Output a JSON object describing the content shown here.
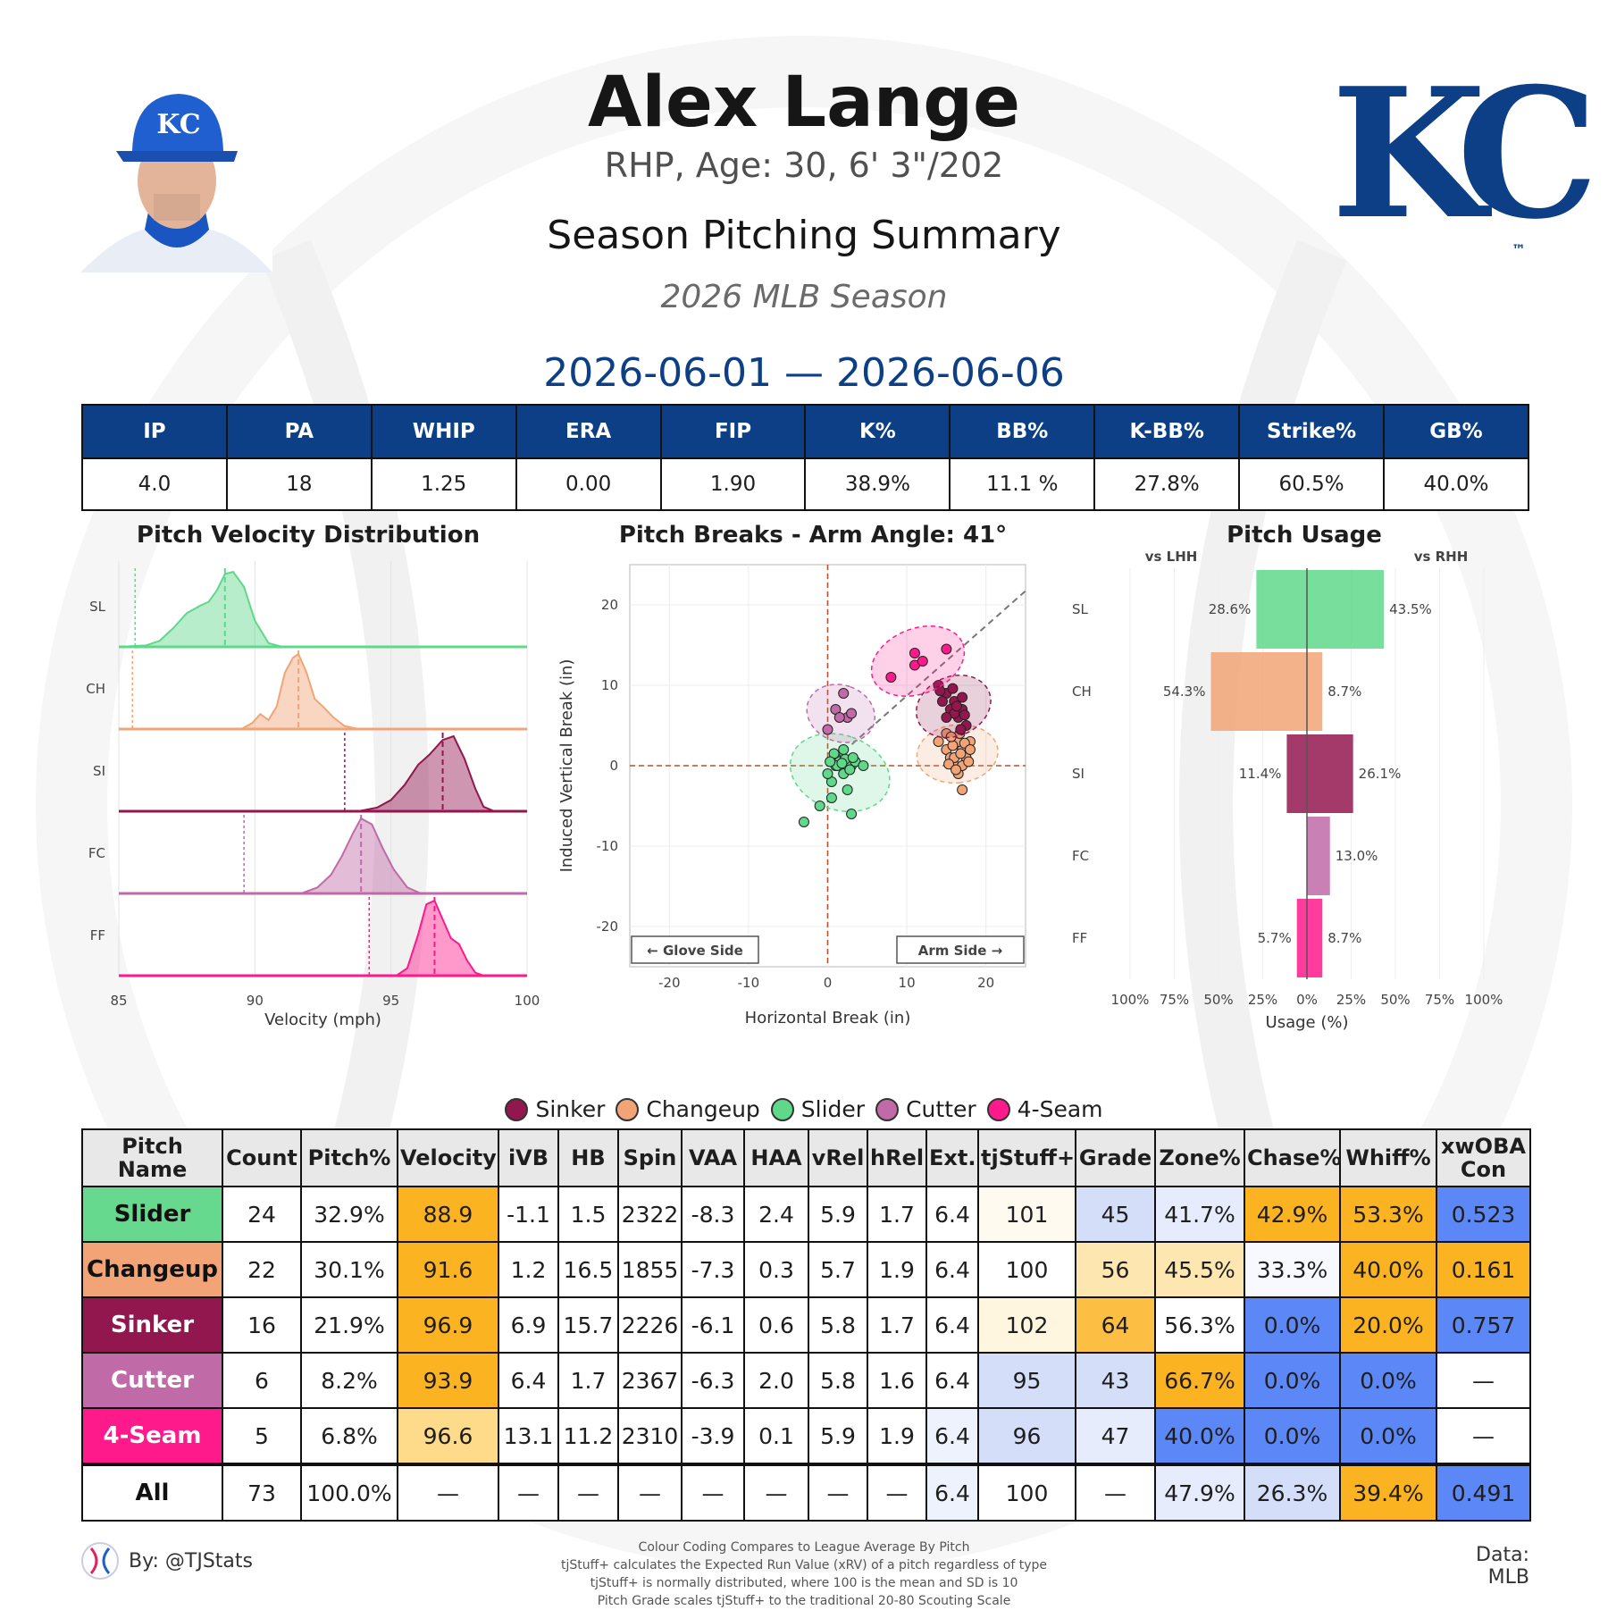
{
  "header": {
    "name": "Alex Lange",
    "bio": "RHP, Age: 30, 6' 3\"/202",
    "subtitle": "Season Pitching Summary",
    "season": "2026 MLB Season",
    "date_range": "2026-06-01 — 2026-06-06",
    "logo_text": "KC",
    "logo_tm": "™"
  },
  "stats": {
    "headers": [
      "IP",
      "PA",
      "WHIP",
      "ERA",
      "FIP",
      "K%",
      "BB%",
      "K-BB%",
      "Strike%",
      "GB%"
    ],
    "values": [
      "4.0",
      "18",
      "1.25",
      "0.00",
      "1.90",
      "38.9%",
      "11.1 %",
      "27.8%",
      "60.5%",
      "40.0%"
    ]
  },
  "colors": {
    "SL": "#5fd88a",
    "CH": "#f2a477",
    "SI": "#93174f",
    "FC": "#c06aa8",
    "FF": "#ff1a8c",
    "navy": "#0c3f86",
    "above": "#fcb322",
    "below": "#5b87f7"
  },
  "chart_data": [
    {
      "type": "area",
      "title": "Pitch Velocity Distribution",
      "xlabel": "Velocity (mph)",
      "xlim": [
        85,
        100
      ],
      "xticks": [
        "85",
        "90",
        "95",
        "100"
      ],
      "categories": [
        "SL",
        "CH",
        "SI",
        "FC",
        "FF"
      ],
      "series": [
        {
          "name": "SL",
          "mean": 88.9,
          "league_avg": 85.6,
          "x": [
            85,
            86,
            86.5,
            87,
            87.5,
            88,
            88.3,
            88.6,
            88.9,
            89.2,
            89.6,
            90,
            90.5,
            91
          ],
          "y": [
            0,
            0.02,
            0.08,
            0.25,
            0.45,
            0.55,
            0.6,
            0.75,
            0.97,
            1.0,
            0.8,
            0.35,
            0.05,
            0
          ]
        },
        {
          "name": "CH",
          "mean": 91.6,
          "league_avg": 85.5,
          "x": [
            89.5,
            89.9,
            90.2,
            90.5,
            90.8,
            91.1,
            91.4,
            91.6,
            91.9,
            92.2,
            92.5,
            92.9,
            93.3,
            93.8
          ],
          "y": [
            0,
            0.08,
            0.2,
            0.12,
            0.3,
            0.75,
            0.95,
            1.0,
            0.75,
            0.4,
            0.3,
            0.15,
            0.04,
            0
          ]
        },
        {
          "name": "SI",
          "mean": 96.9,
          "league_avg": 93.3,
          "x": [
            93.8,
            94.5,
            95,
            95.5,
            96,
            96.4,
            96.9,
            97.3,
            97.7,
            98.1,
            98.4,
            98.8
          ],
          "y": [
            0,
            0.05,
            0.15,
            0.35,
            0.62,
            0.75,
            0.95,
            1.0,
            0.7,
            0.3,
            0.06,
            0
          ]
        },
        {
          "name": "FC",
          "mean": 93.9,
          "league_avg": 89.6,
          "x": [
            91.7,
            92.3,
            92.8,
            93.2,
            93.6,
            93.9,
            94.3,
            94.7,
            95.1,
            95.6,
            96.1
          ],
          "y": [
            0,
            0.08,
            0.25,
            0.5,
            0.8,
            1.0,
            0.92,
            0.6,
            0.32,
            0.08,
            0
          ]
        },
        {
          "name": "FF",
          "mean": 96.6,
          "league_avg": 94.2,
          "x": [
            95.2,
            95.6,
            96,
            96.3,
            96.6,
            96.9,
            97.2,
            97.5,
            97.8,
            98.1,
            98.4
          ],
          "y": [
            0,
            0.1,
            0.55,
            0.95,
            1.0,
            0.75,
            0.5,
            0.42,
            0.2,
            0.04,
            0
          ]
        }
      ]
    },
    {
      "type": "scatter",
      "title": "Pitch Breaks - Arm Angle: 41°",
      "xlabel": "Horizontal Break (in)",
      "ylabel": "Induced Vertical Break (in)",
      "xlim": [
        -25,
        25
      ],
      "ylim": [
        -25,
        25
      ],
      "xticks": [
        "-20",
        "-10",
        "0",
        "10",
        "20"
      ],
      "yticks": [
        "20",
        "10",
        "0",
        "-10",
        "-20"
      ],
      "annotations": [
        "← Glove Side",
        "Arm Side →"
      ],
      "series": [
        {
          "name": "SL",
          "points": [
            [
              -3,
              -7
            ],
            [
              -1,
              -5
            ],
            [
              0.5,
              -4
            ],
            [
              0.5,
              -2
            ],
            [
              3,
              -6
            ],
            [
              2.5,
              -3
            ],
            [
              0,
              -1
            ],
            [
              1,
              0
            ],
            [
              1.5,
              1
            ],
            [
              2,
              2
            ],
            [
              1,
              1
            ],
            [
              2.5,
              0
            ],
            [
              3,
              0
            ],
            [
              3.5,
              0.5
            ],
            [
              4.5,
              0
            ],
            [
              2,
              -1
            ],
            [
              1.5,
              0.5
            ],
            [
              0.8,
              1.5
            ],
            [
              2.2,
              0.8
            ],
            [
              1.2,
              0
            ],
            [
              3.2,
              1
            ],
            [
              0.3,
              0.5
            ],
            [
              2.8,
              -0.5
            ],
            [
              1.8,
              0.3
            ]
          ]
        },
        {
          "name": "CH",
          "points": [
            [
              14,
              3
            ],
            [
              15,
              2
            ],
            [
              15.5,
              1
            ],
            [
              16,
              0
            ],
            [
              16.5,
              -1
            ],
            [
              17,
              -3
            ],
            [
              16,
              1
            ],
            [
              17,
              2
            ],
            [
              18,
              3
            ],
            [
              17.5,
              1
            ],
            [
              15,
              4
            ],
            [
              16.5,
              3
            ],
            [
              17,
              0
            ],
            [
              15.8,
              2.5
            ],
            [
              16.8,
              1.5
            ],
            [
              17.8,
              0.5
            ],
            [
              15.3,
              0.2
            ],
            [
              16.2,
              -0.5
            ],
            [
              17.3,
              2.8
            ],
            [
              16.7,
              4
            ],
            [
              18,
              2
            ],
            [
              15.6,
              3.6
            ]
          ]
        },
        {
          "name": "SI",
          "points": [
            [
              14,
              10
            ],
            [
              15,
              9
            ],
            [
              16,
              8
            ],
            [
              17,
              7
            ],
            [
              16.5,
              6
            ],
            [
              17.5,
              5
            ],
            [
              15.5,
              7
            ],
            [
              14.5,
              8
            ],
            [
              16,
              6.5
            ],
            [
              17,
              8.5
            ],
            [
              15,
              6
            ],
            [
              16.8,
              4.5
            ],
            [
              14.2,
              9.3
            ],
            [
              15.8,
              9.6
            ],
            [
              16.3,
              7.4
            ],
            [
              17.3,
              6.3
            ]
          ]
        },
        {
          "name": "FC",
          "points": [
            [
              2,
              9
            ],
            [
              1,
              7
            ],
            [
              2.5,
              6
            ],
            [
              1.5,
              6
            ],
            [
              3,
              6.5
            ],
            [
              0,
              4.5
            ]
          ]
        },
        {
          "name": "FF",
          "points": [
            [
              8,
              11
            ],
            [
              11,
              12.5
            ],
            [
              11,
              14
            ],
            [
              12,
              13
            ],
            [
              15,
              14.5
            ]
          ]
        }
      ]
    },
    {
      "type": "bar",
      "title": "Pitch Usage",
      "xlabel": "Usage (%)",
      "xticks": [
        "100%",
        "75%",
        "50%",
        "25%",
        "0%",
        "25%",
        "50%",
        "75%",
        "100%"
      ],
      "categories": [
        "SL",
        "CH",
        "SI",
        "FC",
        "FF"
      ],
      "series": [
        {
          "name": "vs LHH",
          "values": [
            28.6,
            54.3,
            11.4,
            0,
            5.7
          ],
          "labels": [
            "28.6%",
            "54.3%",
            "11.4%",
            "",
            "5.7%"
          ]
        },
        {
          "name": "vs RHH",
          "values": [
            43.5,
            8.7,
            26.1,
            13.0,
            8.7
          ],
          "labels": [
            "43.5%",
            "8.7%",
            "26.1%",
            "13.0%",
            "8.7%"
          ]
        }
      ]
    }
  ],
  "legend": [
    {
      "label": "Sinker",
      "color": "#93174f"
    },
    {
      "label": "Changeup",
      "color": "#f2a477"
    },
    {
      "label": "Slider",
      "color": "#5fd88a"
    },
    {
      "label": "Cutter",
      "color": "#c06aa8"
    },
    {
      "label": "4-Seam",
      "color": "#ff1a8c"
    }
  ],
  "pitch_table": {
    "headers": [
      "Pitch Name",
      "Count",
      "Pitch%",
      "Velocity",
      "iVB",
      "HB",
      "Spin",
      "VAA",
      "HAA",
      "vRel",
      "hRel",
      "Ext.",
      "tjStuff+",
      "Grade",
      "Zone%",
      "Chase%",
      "Whiff%",
      "xwOBA Con"
    ],
    "rows": [
      {
        "name": "Slider",
        "bg": "#66d98e",
        "fg": "#111111",
        "cells": [
          "24",
          "32.9%",
          "88.9",
          "-1.1",
          "1.5",
          "2322",
          "-8.3",
          "2.4",
          "5.9",
          "1.7",
          "6.4",
          "101",
          "45",
          "41.7%",
          "42.9%",
          "53.3%",
          "0.523"
        ],
        "cell_bg": [
          "#fff",
          "#fff",
          "#fcb322",
          "#fff",
          "#fff",
          "#fff",
          "#fff",
          "#fff",
          "#fff",
          "#fff",
          "#fff",
          "#fffaf0",
          "#d4def9",
          "#e6ecfc",
          "#fcb322",
          "#fcb322",
          "#5b87f7"
        ]
      },
      {
        "name": "Changeup",
        "bg": "#f2a477",
        "fg": "#111111",
        "cells": [
          "22",
          "30.1%",
          "91.6",
          "1.2",
          "16.5",
          "1855",
          "-7.3",
          "0.3",
          "5.7",
          "1.9",
          "6.4",
          "100",
          "56",
          "45.5%",
          "33.3%",
          "40.0%",
          "0.161"
        ],
        "cell_bg": [
          "#fff",
          "#fff",
          "#fcb322",
          "#fff",
          "#fff",
          "#fff",
          "#fff",
          "#fff",
          "#fff",
          "#fff",
          "#fff",
          "#fff",
          "#fde6b0",
          "#fde6b0",
          "#f7f9ff",
          "#fcb322",
          "#fcb322"
        ]
      },
      {
        "name": "Sinker",
        "bg": "#93174f",
        "fg": "#ffffff",
        "cells": [
          "16",
          "21.9%",
          "96.9",
          "6.9",
          "15.7",
          "2226",
          "-6.1",
          "0.6",
          "5.8",
          "1.7",
          "6.4",
          "102",
          "64",
          "56.3%",
          "0.0%",
          "20.0%",
          "0.757"
        ],
        "cell_bg": [
          "#fff",
          "#fff",
          "#fcb322",
          "#fff",
          "#fff",
          "#fff",
          "#fff",
          "#fff",
          "#fff",
          "#fff",
          "#fff",
          "#fff6e0",
          "#fcbf44",
          "#fff",
          "#5b87f7",
          "#fcb322",
          "#5b87f7"
        ]
      },
      {
        "name": "Cutter",
        "bg": "#c06aa8",
        "fg": "#ffffff",
        "cells": [
          "6",
          "8.2%",
          "93.9",
          "6.4",
          "1.7",
          "2367",
          "-6.3",
          "2.0",
          "5.8",
          "1.6",
          "6.4",
          "95",
          "43",
          "66.7%",
          "0.0%",
          "0.0%",
          "—"
        ],
        "cell_bg": [
          "#fff",
          "#fff",
          "#fcb322",
          "#fff",
          "#fff",
          "#fff",
          "#fff",
          "#fff",
          "#fff",
          "#fff",
          "#fff",
          "#d4def9",
          "#d4def9",
          "#fcb322",
          "#5b87f7",
          "#5b87f7",
          "#fff"
        ]
      },
      {
        "name": "4-Seam",
        "bg": "#ff1a8c",
        "fg": "#ffffff",
        "cells": [
          "5",
          "6.8%",
          "96.6",
          "13.1",
          "11.2",
          "2310",
          "-3.9",
          "0.1",
          "5.9",
          "1.9",
          "6.4",
          "96",
          "47",
          "40.0%",
          "0.0%",
          "0.0%",
          "—"
        ],
        "cell_bg": [
          "#fff",
          "#fff",
          "#fedb8a",
          "#fff",
          "#fff",
          "#fff",
          "#fff",
          "#fff",
          "#fff",
          "#fff",
          "#eef2fd",
          "#d4def9",
          "#e6ecfc",
          "#5b87f7",
          "#5b87f7",
          "#5b87f7",
          "#fff"
        ]
      },
      {
        "name": "All",
        "bg": "#ffffff",
        "fg": "#111111",
        "cells": [
          "73",
          "100.0%",
          "—",
          "—",
          "—",
          "—",
          "—",
          "—",
          "—",
          "—",
          "6.4",
          "100",
          "—",
          "47.9%",
          "26.3%",
          "39.4%",
          "0.491"
        ],
        "cell_bg": [
          "#fff",
          "#fff",
          "#fff",
          "#fff",
          "#fff",
          "#fff",
          "#fff",
          "#fff",
          "#fff",
          "#fff",
          "#eef2fd",
          "#fff",
          "#fff",
          "#e6ecfc",
          "#d4def9",
          "#fcb322",
          "#5b87f7"
        ]
      }
    ]
  },
  "footer": {
    "by": "By: @TJStats",
    "data": "Data: MLB",
    "notes": [
      "Colour Coding Compares to League Average By Pitch",
      "tjStuff+ calculates the Expected Run Value (xRV) of a pitch regardless of type",
      "tjStuff+ is normally distributed, where 100 is the mean and SD is 10",
      "Pitch Grade scales tjStuff+ to the traditional 20-80 Scouting Scale"
    ]
  }
}
